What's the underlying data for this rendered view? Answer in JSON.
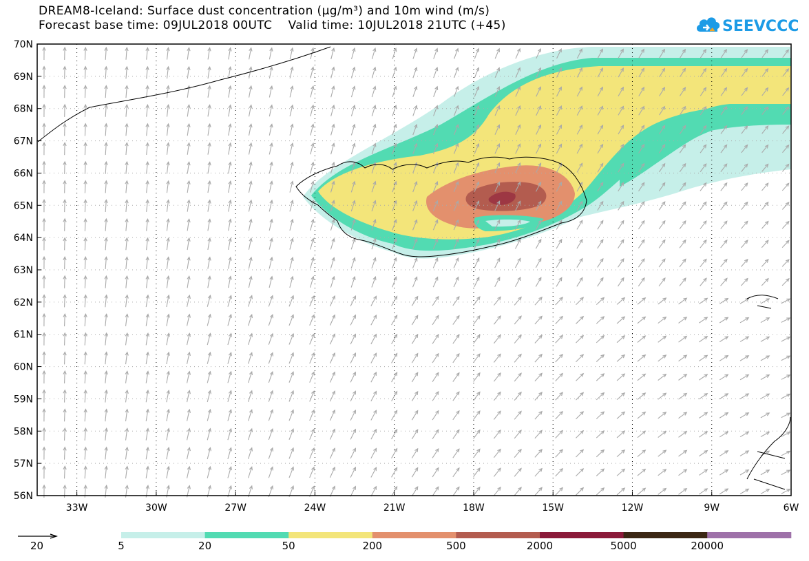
{
  "header": {
    "title_line_1": "DREAM8-Iceland: Surface dust concentration (μg/m³) and 10m wind (m/s)",
    "title_line_2": "Forecast base time: 09JUL2018 00UTC    Valid time: 10JUL2018 21UTC (+45)",
    "logo_text": "SEEVCCC",
    "logo_color": "#1c9be6"
  },
  "map": {
    "lat_range": [
      56,
      70
    ],
    "lon_range": [
      -34.5,
      -6
    ],
    "lat_labels": [
      "56N",
      "57N",
      "58N",
      "59N",
      "60N",
      "61N",
      "62N",
      "63N",
      "64N",
      "65N",
      "66N",
      "67N",
      "68N",
      "69N",
      "70N"
    ],
    "lon_labels": [
      "33W",
      "30W",
      "27W",
      "24W",
      "21W",
      "18W",
      "15W",
      "12W",
      "9W",
      "6W"
    ],
    "lon_values": [
      -33,
      -30,
      -27,
      -24,
      -21,
      -18,
      -15,
      -12,
      -9,
      -6
    ],
    "wind_arrow_color": "#a9a9a9",
    "coastline_color": "#000000"
  },
  "legend": {
    "reference_arrow_label": "20",
    "colorbar_labels": [
      "5",
      "20",
      "50",
      "200",
      "500",
      "2000",
      "5000",
      "20000"
    ],
    "colorbar_colors": [
      "#c6efe9",
      "#52dbb2",
      "#f3e57a",
      "#e3906d",
      "#b35c4f",
      "#8b1a3a",
      "#3b2714",
      "#9e71a9"
    ]
  }
}
